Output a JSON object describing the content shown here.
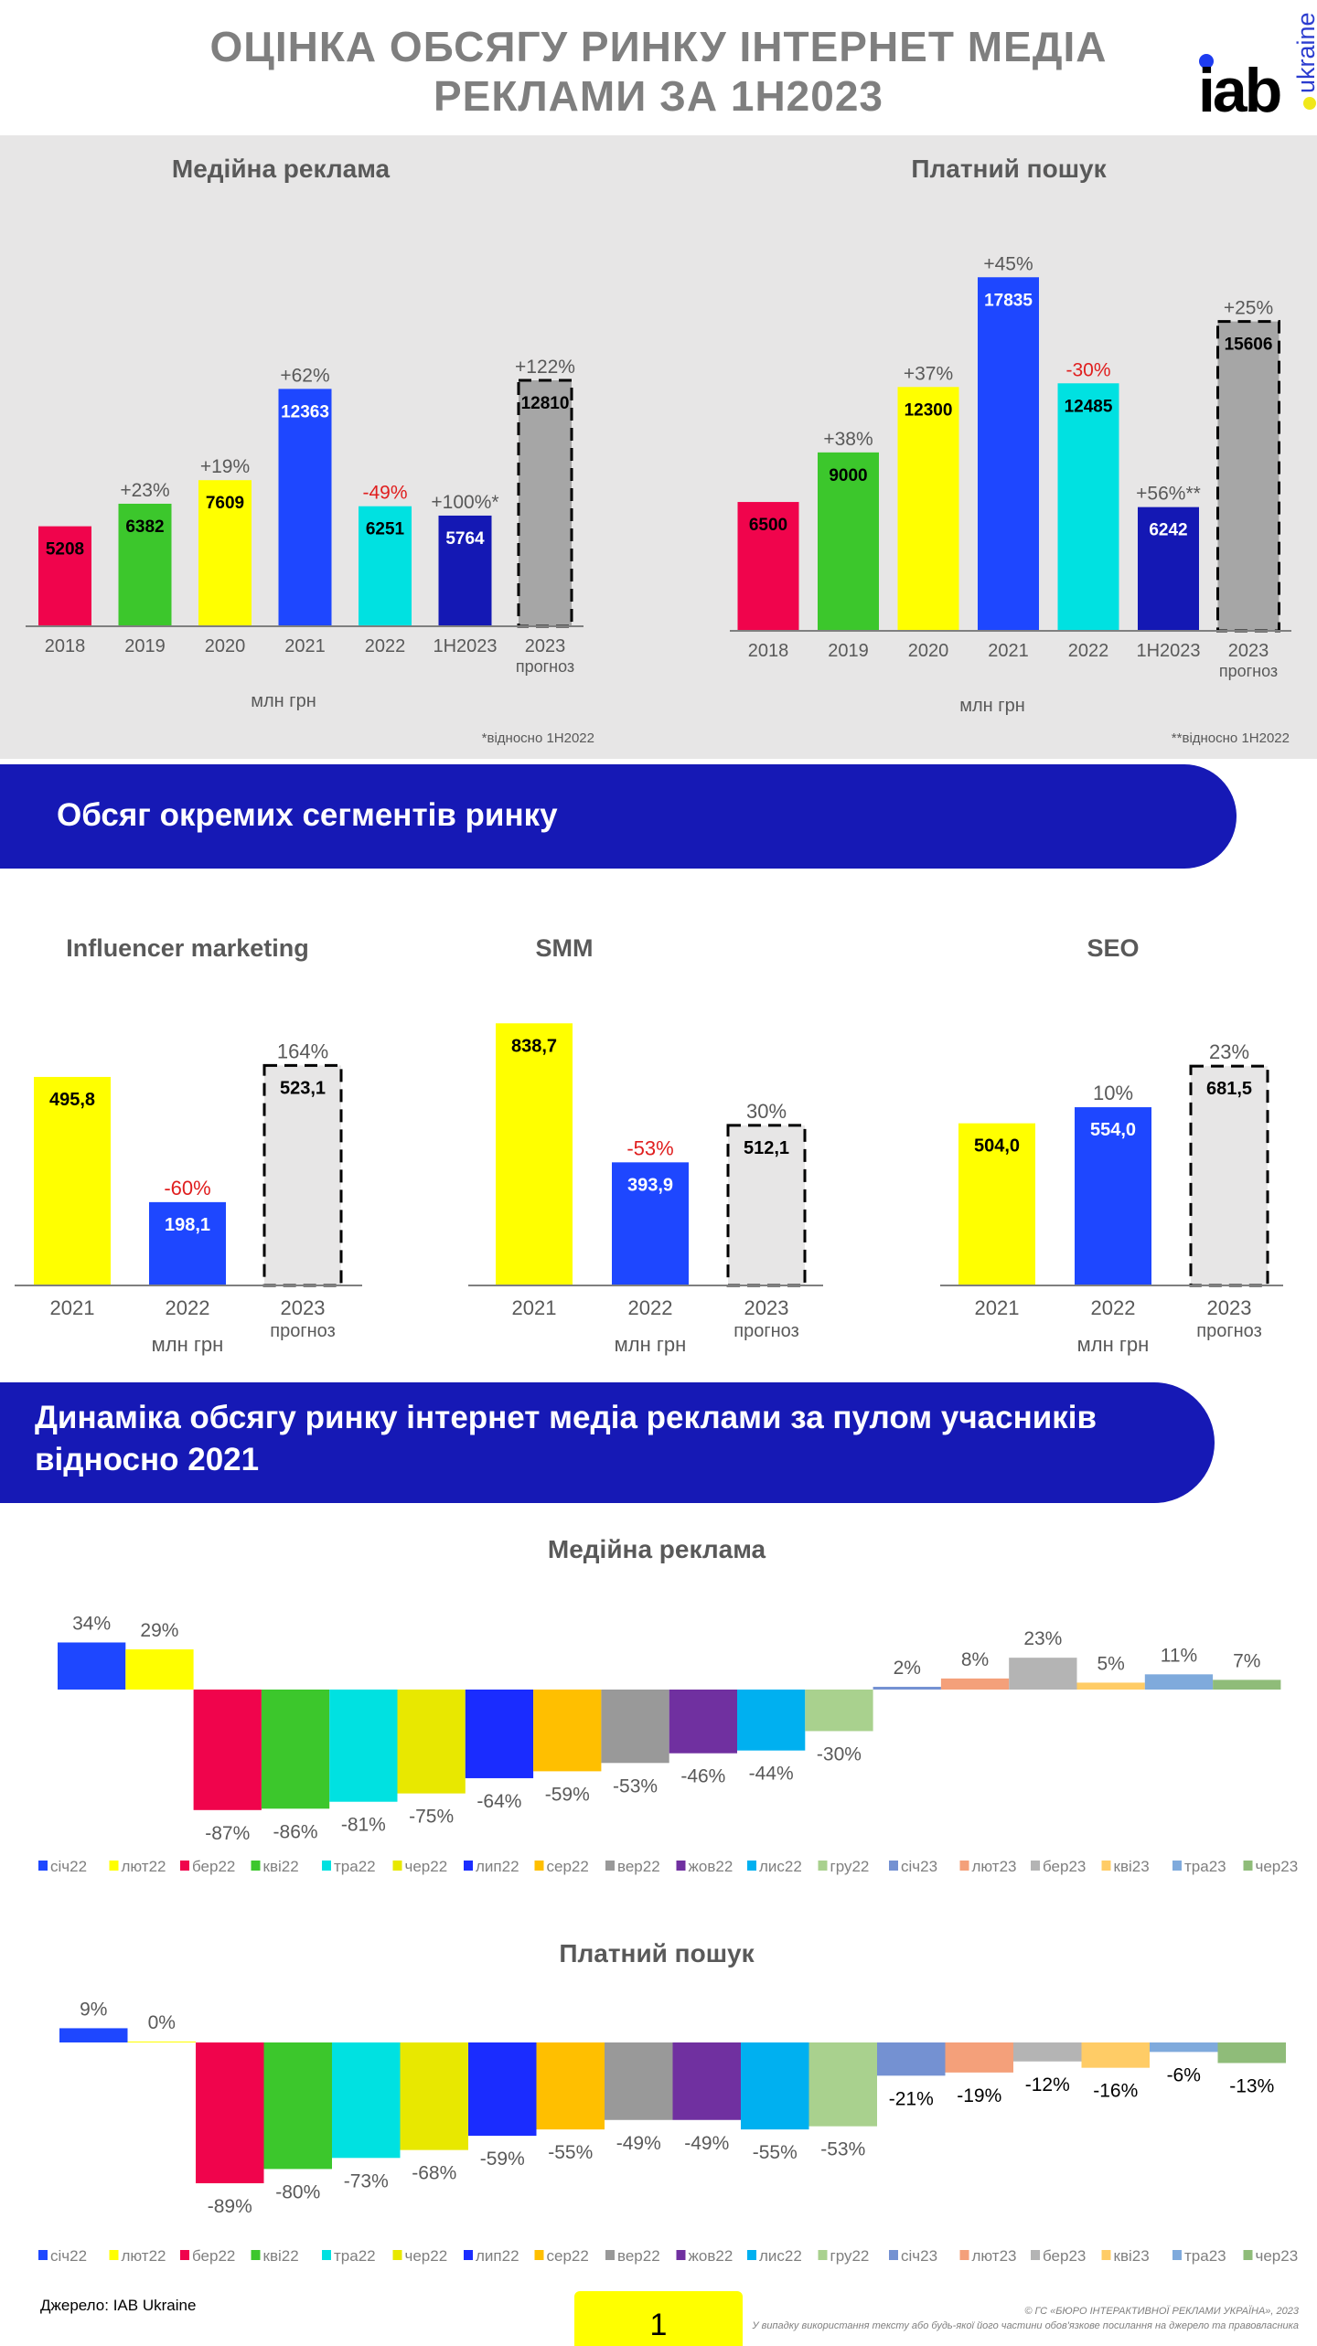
{
  "header": {
    "title_line1": "ОЦІНКА ОБСЯГУ РИНКУ ІНТЕРНЕТ МЕДІА",
    "title_line2": "РЕКЛАМИ ЗА 1Н2023",
    "logo_text": "iab",
    "logo_sub": "ukraine",
    "logo_colors": {
      "dot_i": "#1e3cf0",
      "dot_suffix": "#f0e81a",
      "text": "#000000",
      "sub": "#2b3ccf"
    }
  },
  "ribbons": {
    "segments": "Обсяг окремих сегментів ринку",
    "dynamics": "Динаміка обсягу ринку інтернет медіа реклами за пулом учасників відносно 2021"
  },
  "footer": {
    "source": "Джерело: IAB Ukraine",
    "page_number": "1",
    "copyright_line1": "© ГС «БЮРО ІНТЕРАКТИВНОЇ РЕКЛАМИ УКРАЇНА», 2023",
    "copyright_line2": "У випадку використання тексту або будь-якої його частини обов'язкове посилання на джерело та правовласника"
  },
  "chart_data": [
    {
      "id": "media-annual",
      "type": "bar",
      "title": "Медійна реклама",
      "xlabel": "млн грн",
      "footnote": "*відносно 1H2022",
      "categories": [
        "2018",
        "2019",
        "2020",
        "2021",
        "2022",
        "1H2023",
        "2023|прогноз"
      ],
      "values": [
        5208,
        6382,
        7609,
        12363,
        6251,
        5764,
        12810
      ],
      "value_labels": [
        "5208",
        "6382",
        "7609",
        "12363",
        "6251",
        "5764",
        "12810"
      ],
      "change_labels": [
        "",
        "+23%",
        "+19%",
        "+62%",
        "-49%",
        "+100%*",
        "+122%"
      ],
      "change_colors": [
        "",
        "#595959",
        "#595959",
        "#595959",
        "#e01e1e",
        "#595959",
        "#595959"
      ],
      "colors": [
        "#f0044c",
        "#3cc72c",
        "#ffff00",
        "#1e47ff",
        "#00e1e1",
        "#1418b4",
        "#a6a6a6"
      ],
      "label_colors": [
        "#000",
        "#000",
        "#000",
        "#fff",
        "#000",
        "#fff",
        "#000"
      ],
      "forecast_index": 6,
      "ylim": [
        0,
        14000
      ]
    },
    {
      "id": "search-annual",
      "type": "bar",
      "title": "Платний пошук",
      "xlabel": "млн грн",
      "footnote": "**відносно 1H2022",
      "categories": [
        "2018",
        "2019",
        "2020",
        "2021",
        "2022",
        "1H2023",
        "2023|прогноз"
      ],
      "values": [
        6500,
        9000,
        12300,
        17835,
        12485,
        6242,
        15606
      ],
      "value_labels": [
        "6500",
        "9000",
        "12300",
        "17835",
        "12485",
        "6242",
        "15606"
      ],
      "change_labels": [
        "",
        "+38%",
        "+37%",
        "+45%",
        "-30%",
        "+56%**",
        "+25%"
      ],
      "change_colors": [
        "",
        "#595959",
        "#595959",
        "#595959",
        "#e01e1e",
        "#595959",
        "#595959"
      ],
      "colors": [
        "#f0044c",
        "#3cc72c",
        "#ffff00",
        "#1e47ff",
        "#00e1e1",
        "#1418b4",
        "#a6a6a6"
      ],
      "label_colors": [
        "#000",
        "#000",
        "#000",
        "#fff",
        "#000",
        "#fff",
        "#000"
      ],
      "forecast_index": 6,
      "ylim": [
        0,
        19000
      ]
    },
    {
      "id": "influencer",
      "type": "bar",
      "title": "Influencer marketing",
      "xlabel": "млн грн",
      "categories": [
        "2021",
        "2022",
        "2023|прогноз"
      ],
      "values": [
        495.8,
        198.1,
        523.1
      ],
      "value_labels": [
        "495,8",
        "198,1",
        "523,1"
      ],
      "change_labels": [
        "",
        "-60%",
        "164%"
      ],
      "change_colors": [
        "",
        "#e01e1e",
        "#595959"
      ],
      "colors": [
        "#ffff00",
        "#1e47ff",
        "#e7e6e6"
      ],
      "label_colors": [
        "#000",
        "#fff",
        "#000"
      ],
      "forecast_index": 2,
      "ylim": [
        0,
        600
      ]
    },
    {
      "id": "smm",
      "type": "bar",
      "title": "SMM",
      "xlabel": "млн грн",
      "categories": [
        "2021",
        "2022",
        "2023|прогноз"
      ],
      "values": [
        838.7,
        393.9,
        512.1
      ],
      "value_labels": [
        "838,7",
        "393,9",
        "512,1"
      ],
      "change_labels": [
        "",
        "-53%",
        "30%"
      ],
      "change_colors": [
        "",
        "#e01e1e",
        "#595959"
      ],
      "colors": [
        "#ffff00",
        "#1e47ff",
        "#e7e6e6"
      ],
      "label_colors": [
        "#000",
        "#fff",
        "#000"
      ],
      "forecast_index": 2,
      "ylim": [
        0,
        860
      ]
    },
    {
      "id": "seo",
      "type": "bar",
      "title": "SEO",
      "xlabel": "млн грн",
      "categories": [
        "2021",
        "2022",
        "2023|прогноз"
      ],
      "values": [
        504.0,
        554.0,
        681.5
      ],
      "value_labels": [
        "504,0",
        "554,0",
        "681,5"
      ],
      "change_labels": [
        "",
        "10%",
        "23%"
      ],
      "change_colors": [
        "",
        "#595959",
        "#595959"
      ],
      "colors": [
        "#ffff00",
        "#1e47ff",
        "#e7e6e6"
      ],
      "label_colors": [
        "#000",
        "#fff",
        "#000"
      ],
      "forecast_index": 2,
      "ylim": [
        0,
        790
      ]
    },
    {
      "id": "media-monthly",
      "type": "bar",
      "title": "Медійна реклама",
      "categories": [
        "січ22",
        "лют22",
        "бер22",
        "кві22",
        "тра22",
        "чер22",
        "лип22",
        "сер22",
        "вер22",
        "жов22",
        "лис22",
        "гру22",
        "січ23",
        "лют23",
        "бер23",
        "кві23",
        "тра23",
        "чер23"
      ],
      "values": [
        34,
        29,
        -87,
        -86,
        -81,
        -75,
        -64,
        -59,
        -53,
        -46,
        -44,
        -30,
        2,
        8,
        23,
        5,
        11,
        7
      ],
      "value_labels": [
        "34%",
        "29%",
        "-87%",
        "-86%",
        "-81%",
        "-75%",
        "-64%",
        "-59%",
        "-53%",
        "-46%",
        "-44%",
        "-30%",
        "2%",
        "8%",
        "23%",
        "5%",
        "11%",
        "7%"
      ],
      "unit": "%",
      "colors": [
        "#1e47ff",
        "#ffff00",
        "#f0044c",
        "#3cc72c",
        "#00e1e1",
        "#e8e800",
        "#1a2cff",
        "#ffbf00",
        "#999999",
        "#7030a0",
        "#00b0f0",
        "#a9d18e",
        "#7491d2",
        "#f4a07a",
        "#b4b4b4",
        "#ffcc66",
        "#7faadc",
        "#8fbc79"
      ],
      "legend": "bottom",
      "ylim": [
        -100,
        40
      ]
    },
    {
      "id": "search-monthly",
      "type": "bar",
      "title": "Платний пошук",
      "categories": [
        "січ22",
        "лют22",
        "бер22",
        "кві22",
        "тра22",
        "чер22",
        "лип22",
        "сер22",
        "вер22",
        "жов22",
        "лис22",
        "гру22",
        "січ23",
        "лют23",
        "бер23",
        "кві23",
        "тра23",
        "чер23"
      ],
      "values": [
        9,
        0,
        -89,
        -80,
        -73,
        -68,
        -59,
        -55,
        -49,
        -49,
        -55,
        -53,
        -21,
        -19,
        -12,
        -16,
        -6,
        -13
      ],
      "value_labels": [
        "9%",
        "0%",
        "-89%",
        "-80%",
        "-73%",
        "-68%",
        "-59%",
        "-55%",
        "-49%",
        "-49%",
        "-55%",
        "-53%",
        "-21%",
        "-19%",
        "-12%",
        "-16%",
        "-6%",
        "-13%"
      ],
      "unit": "%",
      "colors": [
        "#1e47ff",
        "#ffff00",
        "#f0044c",
        "#3cc72c",
        "#00e1e1",
        "#e8e800",
        "#1a2cff",
        "#ffbf00",
        "#999999",
        "#7030a0",
        "#00b0f0",
        "#a9d18e",
        "#7491d2",
        "#f4a07a",
        "#b4b4b4",
        "#ffcc66",
        "#7faadc",
        "#8fbc79"
      ],
      "legend": "bottom",
      "ylim": [
        -100,
        20
      ]
    }
  ]
}
